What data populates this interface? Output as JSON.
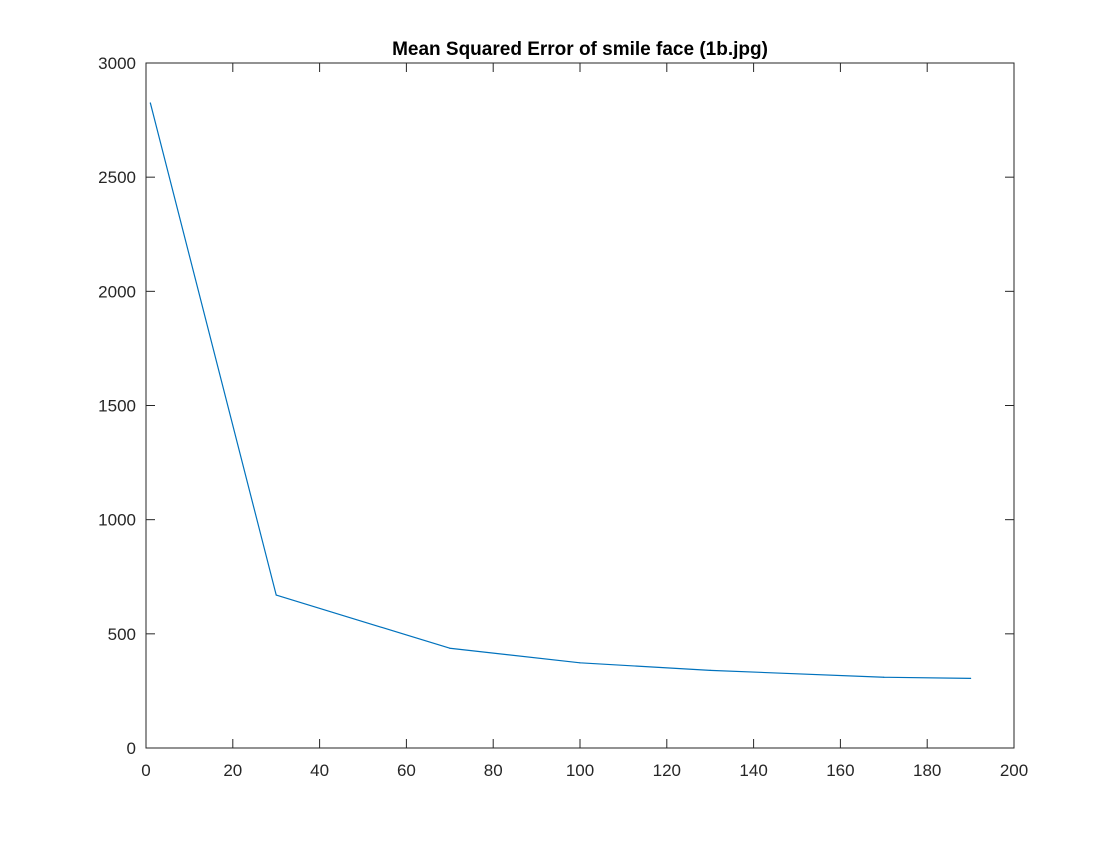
{
  "chart_data": {
    "type": "line",
    "title": "Mean Squared Error of smile face (1b.jpg)",
    "xlabel": "",
    "ylabel": "",
    "xlim": [
      0,
      200
    ],
    "ylim": [
      0,
      3000
    ],
    "xticks": [
      0,
      20,
      40,
      60,
      80,
      100,
      120,
      140,
      160,
      180,
      200
    ],
    "yticks": [
      0,
      500,
      1000,
      1500,
      2000,
      2500,
      3000
    ],
    "xtick_labels": [
      "0",
      "20",
      "40",
      "60",
      "80",
      "100",
      "120",
      "140",
      "160",
      "180",
      "200"
    ],
    "ytick_labels": [
      "0",
      "500",
      "1000",
      "1500",
      "2000",
      "2500",
      "3000"
    ],
    "grid": false,
    "series": [
      {
        "color": "#0072BD",
        "x": [
          1,
          30,
          70,
          100,
          130,
          170,
          190
        ],
        "y": [
          2825,
          670,
          437,
          373,
          340,
          310,
          305
        ]
      }
    ]
  }
}
